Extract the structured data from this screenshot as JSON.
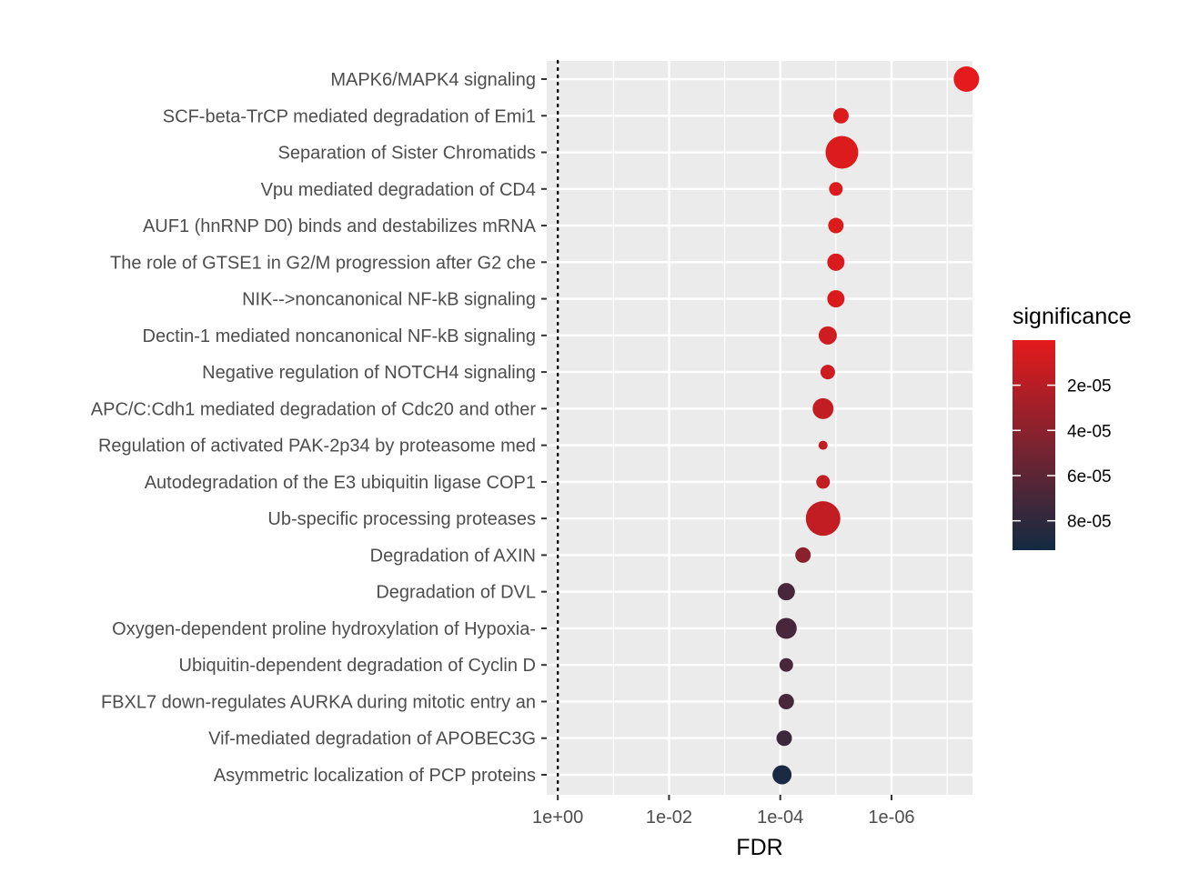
{
  "chart_data": {
    "type": "scatter",
    "xlabel": "FDR",
    "ylabel": "",
    "x_scale": "log10, reversed",
    "xlim": [
      1.58,
      3.5e-08
    ],
    "x_ticks": [
      {
        "value": 1,
        "label": "1e+00"
      },
      {
        "value": 0.01,
        "label": "1e-02"
      },
      {
        "value": 0.0001,
        "label": "1e-04"
      },
      {
        "value": 1e-06,
        "label": "1e-06"
      }
    ],
    "reference_line": {
      "x": 1,
      "style": "dotted"
    },
    "grid": true,
    "points": [
      {
        "pathway": "MAPK6/MAPK4 signaling",
        "fdr": 4.5e-08,
        "significance": 5e-08,
        "size": 14
      },
      {
        "pathway": "SCF-beta-TrCP mediated degradation of Emi1",
        "fdr": 8.1e-06,
        "significance": 3e-06,
        "size": 8.5
      },
      {
        "pathway": "Separation of Sister Chromatids",
        "fdr": 7.8e-06,
        "significance": 3.5e-06,
        "size": 18
      },
      {
        "pathway": "Vpu mediated degradation of CD4",
        "fdr": 1e-05,
        "significance": 4e-06,
        "size": 7.5
      },
      {
        "pathway": "AUF1 (hnRNP D0) binds and destabilizes mRNA",
        "fdr": 1e-05,
        "significance": 4e-06,
        "size": 8.5
      },
      {
        "pathway": "The role of GTSE1 in G2/M progression after G2 che",
        "fdr": 1e-05,
        "significance": 5e-06,
        "size": 9.5
      },
      {
        "pathway": "NIK-->noncanonical NF-kB signaling",
        "fdr": 1e-05,
        "significance": 5e-06,
        "size": 9.5
      },
      {
        "pathway": "Dectin-1 mediated noncanonical NF-kB signaling",
        "fdr": 1.4e-05,
        "significance": 1e-05,
        "size": 10
      },
      {
        "pathway": "Negative regulation of NOTCH4 signaling",
        "fdr": 1.4e-05,
        "significance": 1e-05,
        "size": 8
      },
      {
        "pathway": "APC/C:Cdh1 mediated degradation of Cdc20 and other",
        "fdr": 1.7e-05,
        "significance": 1.5e-05,
        "size": 11.5
      },
      {
        "pathway": "Regulation of activated PAK-2p34 by proteasome med",
        "fdr": 1.7e-05,
        "significance": 1.5e-05,
        "size": 5
      },
      {
        "pathway": "Autodegradation of the E3 ubiquitin ligase COP1",
        "fdr": 1.7e-05,
        "significance": 1.5e-05,
        "size": 7.5
      },
      {
        "pathway": "Ub-specific processing proteases",
        "fdr": 1.7e-05,
        "significance": 1.5e-05,
        "size": 19
      },
      {
        "pathway": "Degradation of AXIN",
        "fdr": 3.9e-05,
        "significance": 4e-05,
        "size": 8.5
      },
      {
        "pathway": "Degradation of DVL",
        "fdr": 7.8e-05,
        "significance": 7e-05,
        "size": 9.5
      },
      {
        "pathway": "Oxygen-dependent proline hydroxylation of Hypoxia-",
        "fdr": 7.8e-05,
        "significance": 7e-05,
        "size": 11.5
      },
      {
        "pathway": "Ubiquitin-dependent degradation of Cyclin D",
        "fdr": 7.8e-05,
        "significance": 7e-05,
        "size": 7.5
      },
      {
        "pathway": "FBXL7 down-regulates AURKA during mitotic entry an",
        "fdr": 7.8e-05,
        "significance": 7e-05,
        "size": 8.5
      },
      {
        "pathway": "Vif-mediated degradation of APOBEC3G",
        "fdr": 8.5e-05,
        "significance": 7.5e-05,
        "size": 8.5
      },
      {
        "pathway": "Asymmetric localization of PCP proteins",
        "fdr": 9.3e-05,
        "significance": 9e-05,
        "size": 10.5
      }
    ],
    "legend": {
      "title": "significance",
      "placement": "right",
      "range": [
        5e-08,
        9.3e-05
      ],
      "ticks": [
        {
          "value": 2e-05,
          "label": "2e-05"
        },
        {
          "value": 4e-05,
          "label": "4e-05"
        },
        {
          "value": 6e-05,
          "label": "6e-05"
        },
        {
          "value": 8e-05,
          "label": "8e-05"
        }
      ],
      "colors": {
        "low": "#e41a1c",
        "high": "#132b43"
      }
    },
    "colors": {
      "panel_bg": "#ebebeb",
      "grid": "#ffffff",
      "ref_line": "#000000"
    }
  }
}
